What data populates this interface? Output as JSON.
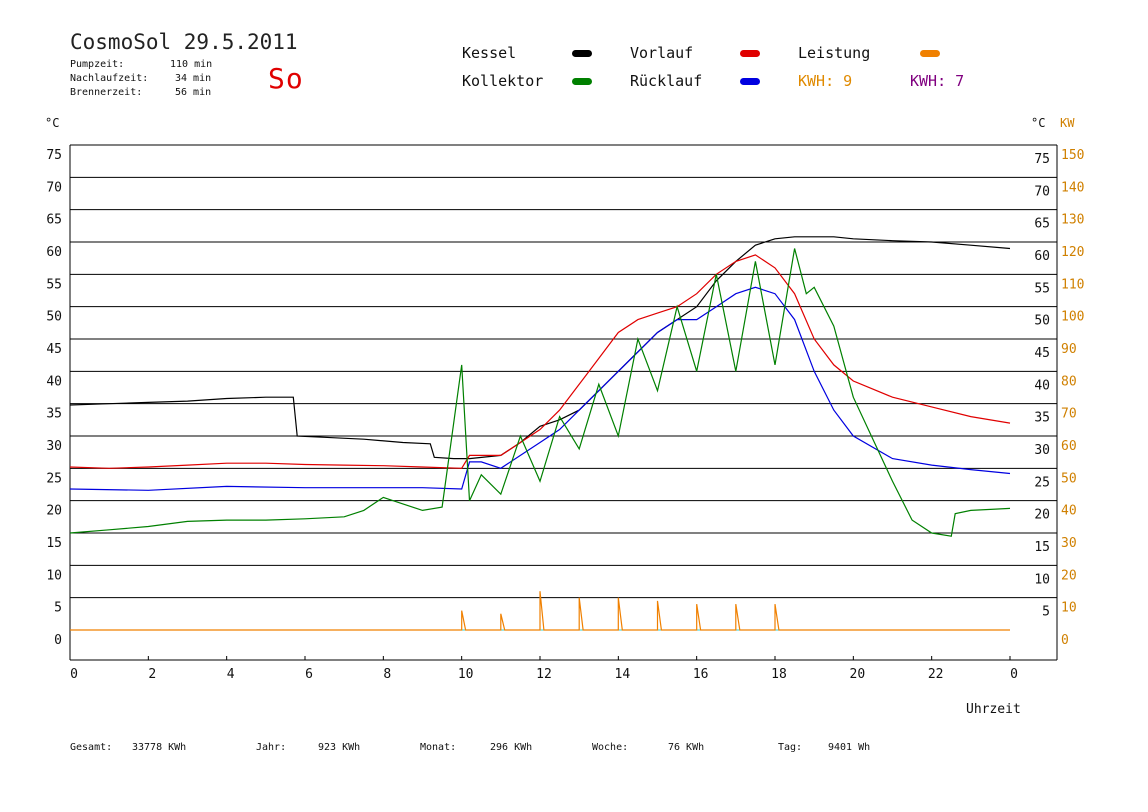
{
  "header": {
    "title": "CosmoSol 29.5.2011",
    "day": "So",
    "info": [
      {
        "label": "Pumpzeit:",
        "value": "110 min"
      },
      {
        "label": "Nachlaufzeit:",
        "value": "34 min"
      },
      {
        "label": "Brennerzeit:",
        "value": "56 min"
      }
    ]
  },
  "legend": {
    "items": [
      {
        "label": "Kessel",
        "color": "#000000"
      },
      {
        "label": "Vorlauf",
        "color": "#e00000"
      },
      {
        "label": "Leistung",
        "color": "#f08000"
      },
      {
        "label": "Kollektor",
        "color": "#008000"
      },
      {
        "label": "Rücklauf",
        "color": "#0000e0"
      }
    ],
    "kwh_orange": "KWH: 9",
    "kwh_purple": "KWH: 7",
    "kwh_orange_color": "#e08a00",
    "kwh_purple_color": "#800080"
  },
  "axes": {
    "left_unit": "°C",
    "right_unit": "°C",
    "right_unit2": "KW",
    "xlabel": "Uhrzeit"
  },
  "footer": [
    {
      "label": "Gesamt:",
      "value": "33778 KWh"
    },
    {
      "label": "Jahr:",
      "value": "923 KWh"
    },
    {
      "label": "Monat:",
      "value": "296 KWh"
    },
    {
      "label": "Woche:",
      "value": "76 KWh"
    },
    {
      "label": "Tag:",
      "value": "9401 Wh"
    }
  ],
  "chart_data": {
    "type": "line",
    "x_ticks": [
      "0",
      "2",
      "4",
      "6",
      "8",
      "10",
      "12",
      "14",
      "16",
      "18",
      "20",
      "22",
      "0"
    ],
    "x_range": [
      0,
      24
    ],
    "y_range": [
      0,
      75
    ],
    "y_ticks_left": [
      75,
      70,
      65,
      60,
      55,
      50,
      45,
      40,
      35,
      30,
      25,
      20,
      15,
      10,
      5,
      0
    ],
    "y_ticks_right": [
      75,
      70,
      65,
      60,
      55,
      50,
      45,
      40,
      35,
      30,
      25,
      20,
      15,
      10,
      5
    ],
    "y_ticks_kw": [
      150,
      140,
      130,
      120,
      110,
      100,
      90,
      80,
      70,
      60,
      50,
      40,
      30,
      20,
      10,
      0
    ],
    "series": [
      {
        "name": "Kessel",
        "color": "#000000",
        "points": [
          [
            0,
            34.8
          ],
          [
            1,
            35
          ],
          [
            2,
            35.2
          ],
          [
            3,
            35.4
          ],
          [
            4,
            35.8
          ],
          [
            5,
            36
          ],
          [
            5.7,
            36
          ],
          [
            5.8,
            30
          ],
          [
            6.5,
            29.8
          ],
          [
            7.5,
            29.5
          ],
          [
            8.5,
            29
          ],
          [
            9.2,
            28.8
          ],
          [
            9.3,
            26.7
          ],
          [
            9.8,
            26.5
          ],
          [
            10.2,
            26.5
          ],
          [
            11,
            27
          ],
          [
            11.5,
            29
          ],
          [
            12,
            31.5
          ],
          [
            12.5,
            32.5
          ],
          [
            13,
            34
          ],
          [
            13.5,
            37
          ],
          [
            14,
            40
          ],
          [
            14.5,
            43
          ],
          [
            15,
            46
          ],
          [
            15.5,
            48
          ],
          [
            16,
            50
          ],
          [
            16.5,
            54
          ],
          [
            17,
            57
          ],
          [
            17.5,
            59.5
          ],
          [
            18,
            60.5
          ],
          [
            18.5,
            60.8
          ],
          [
            19.5,
            60.8
          ],
          [
            20,
            60.5
          ],
          [
            21,
            60.2
          ],
          [
            22,
            60
          ],
          [
            23,
            59.5
          ],
          [
            24,
            59
          ]
        ]
      },
      {
        "name": "Vorlauf",
        "color": "#e00000",
        "points": [
          [
            0,
            25.2
          ],
          [
            1,
            25
          ],
          [
            2,
            25.2
          ],
          [
            3,
            25.5
          ],
          [
            4,
            25.8
          ],
          [
            5,
            25.8
          ],
          [
            6,
            25.6
          ],
          [
            7,
            25.5
          ],
          [
            8,
            25.4
          ],
          [
            9,
            25.2
          ],
          [
            10,
            25
          ],
          [
            10.2,
            27
          ],
          [
            10.5,
            27
          ],
          [
            11,
            27
          ],
          [
            11.5,
            29
          ],
          [
            12,
            31
          ],
          [
            12.5,
            34
          ],
          [
            13,
            38
          ],
          [
            13.5,
            42
          ],
          [
            14,
            46
          ],
          [
            14.5,
            48
          ],
          [
            15,
            49
          ],
          [
            15.5,
            50
          ],
          [
            16,
            52
          ],
          [
            16.5,
            55
          ],
          [
            17,
            57
          ],
          [
            17.5,
            58
          ],
          [
            18,
            56
          ],
          [
            18.5,
            52
          ],
          [
            19,
            45
          ],
          [
            19.5,
            41
          ],
          [
            20,
            38.5
          ],
          [
            21,
            36
          ],
          [
            22,
            34.5
          ],
          [
            23,
            33
          ],
          [
            24,
            32
          ]
        ]
      },
      {
        "name": "Rücklauf",
        "color": "#0000e0",
        "points": [
          [
            0,
            21.8
          ],
          [
            2,
            21.6
          ],
          [
            4,
            22.2
          ],
          [
            6,
            22
          ],
          [
            8,
            22
          ],
          [
            9,
            22
          ],
          [
            10,
            21.8
          ],
          [
            10.2,
            26
          ],
          [
            10.5,
            26
          ],
          [
            11,
            25
          ],
          [
            11.5,
            27
          ],
          [
            12,
            29
          ],
          [
            12.5,
            31
          ],
          [
            13,
            34
          ],
          [
            13.5,
            37
          ],
          [
            14,
            40
          ],
          [
            14.5,
            43
          ],
          [
            15,
            46
          ],
          [
            15.5,
            48
          ],
          [
            16,
            48
          ],
          [
            16.5,
            50
          ],
          [
            17,
            52
          ],
          [
            17.5,
            53
          ],
          [
            18,
            52
          ],
          [
            18.5,
            48
          ],
          [
            19,
            40
          ],
          [
            19.5,
            34
          ],
          [
            20,
            30
          ],
          [
            21,
            26.5
          ],
          [
            22,
            25.5
          ],
          [
            23,
            24.8
          ],
          [
            24,
            24.2
          ]
        ]
      },
      {
        "name": "Kollektor",
        "color": "#008000",
        "points": [
          [
            0,
            15
          ],
          [
            1,
            15.5
          ],
          [
            2,
            16
          ],
          [
            3,
            16.8
          ],
          [
            4,
            17
          ],
          [
            5,
            17
          ],
          [
            6,
            17.2
          ],
          [
            7,
            17.5
          ],
          [
            7.5,
            18.5
          ],
          [
            8,
            20.5
          ],
          [
            8.5,
            19.5
          ],
          [
            9,
            18.5
          ],
          [
            9.5,
            19
          ],
          [
            10,
            41
          ],
          [
            10.2,
            20
          ],
          [
            10.5,
            24
          ],
          [
            11,
            21
          ],
          [
            11.5,
            30
          ],
          [
            12,
            23
          ],
          [
            12.5,
            33
          ],
          [
            13,
            28
          ],
          [
            13.5,
            38
          ],
          [
            14,
            30
          ],
          [
            14.5,
            45
          ],
          [
            15,
            37
          ],
          [
            15.5,
            50
          ],
          [
            16,
            40
          ],
          [
            16.5,
            55
          ],
          [
            17,
            40
          ],
          [
            17.5,
            57
          ],
          [
            18,
            41
          ],
          [
            18.5,
            59
          ],
          [
            18.8,
            52
          ],
          [
            19,
            53
          ],
          [
            19.5,
            47
          ],
          [
            20,
            36
          ],
          [
            21,
            23
          ],
          [
            21.5,
            17
          ],
          [
            22,
            15
          ],
          [
            22.5,
            14.5
          ],
          [
            22.6,
            18
          ],
          [
            23,
            18.5
          ],
          [
            24,
            18.8
          ]
        ]
      },
      {
        "name": "Leistung",
        "color": "#f08000",
        "points": [
          [
            0,
            0
          ],
          [
            10,
            0
          ],
          [
            10,
            3
          ],
          [
            10.1,
            0
          ],
          [
            11,
            0
          ],
          [
            11,
            2.5
          ],
          [
            11.1,
            0
          ],
          [
            12,
            0
          ],
          [
            12,
            6
          ],
          [
            12.1,
            0
          ],
          [
            13,
            0
          ],
          [
            13,
            5
          ],
          [
            13.1,
            0
          ],
          [
            14,
            0
          ],
          [
            14,
            5
          ],
          [
            14.1,
            0
          ],
          [
            15,
            0
          ],
          [
            15,
            4.5
          ],
          [
            15.1,
            0
          ],
          [
            16,
            0
          ],
          [
            16,
            4
          ],
          [
            16.1,
            0
          ],
          [
            17,
            0
          ],
          [
            17,
            4
          ],
          [
            17.1,
            0
          ],
          [
            18,
            0
          ],
          [
            18,
            4
          ],
          [
            18.1,
            0
          ],
          [
            24,
            0
          ]
        ]
      }
    ]
  }
}
